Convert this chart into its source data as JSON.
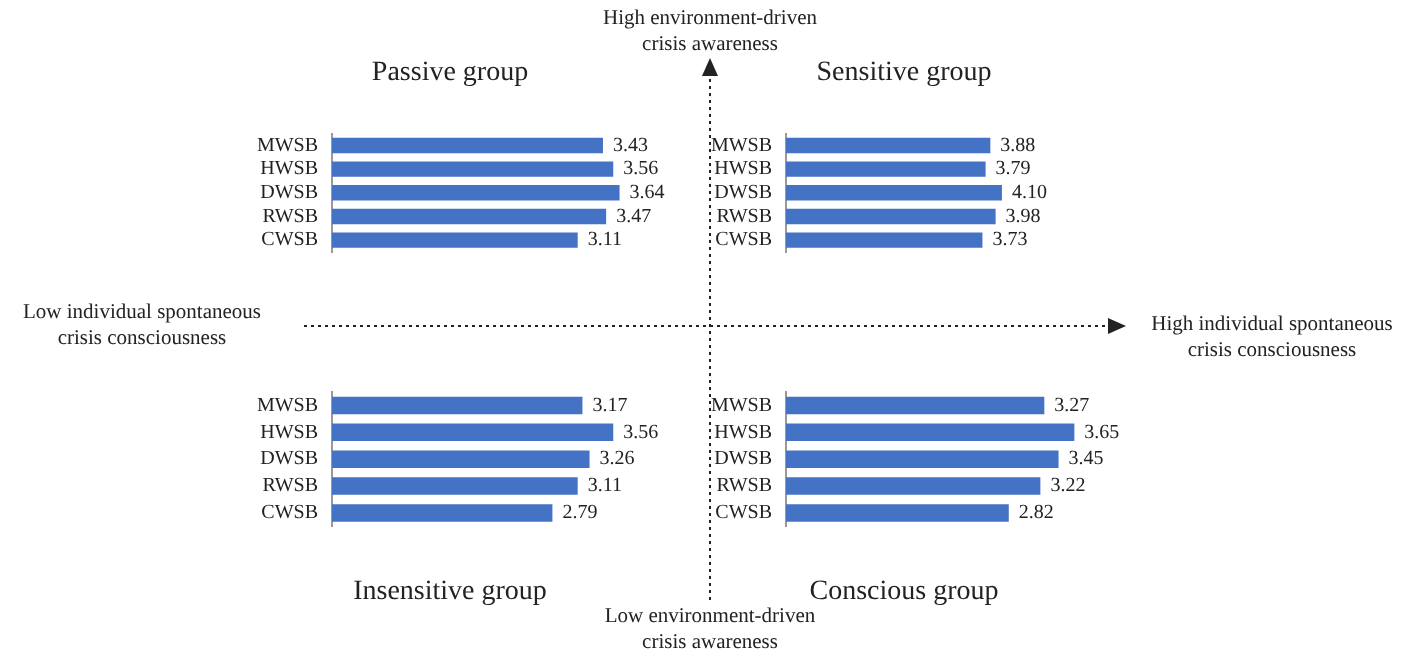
{
  "chart_data": [
    {
      "type": "bar",
      "orientation": "horizontal",
      "title": "Passive group",
      "categories": [
        "MWSB",
        "HWSB",
        "DWSB",
        "RWSB",
        "CWSB"
      ],
      "values": [
        3.43,
        3.56,
        3.64,
        3.47,
        3.11
      ],
      "value_labels": [
        "3.43",
        "3.56",
        "3.64",
        "3.47",
        "3.11"
      ],
      "color": "#4472c4",
      "tick_labels": "y"
    },
    {
      "type": "bar",
      "orientation": "horizontal",
      "title": "Sensitive group",
      "categories": [
        "MWSB",
        "HWSB",
        "DWSB",
        "RWSB",
        "CWSB"
      ],
      "values": [
        3.88,
        3.79,
        4.1,
        3.98,
        3.73
      ],
      "value_labels": [
        "3.88",
        "3.79",
        "4.10",
        "3.98",
        "3.73"
      ],
      "color": "#4472c4",
      "tick_labels": "y"
    },
    {
      "type": "bar",
      "orientation": "horizontal",
      "title": "Insensitive group",
      "categories": [
        "MWSB",
        "HWSB",
        "DWSB",
        "RWSB",
        "CWSB"
      ],
      "values": [
        3.17,
        3.56,
        3.26,
        3.11,
        2.79
      ],
      "value_labels": [
        "3.17",
        "3.56",
        "3.26",
        "3.11",
        "2.79"
      ],
      "color": "#4472c4",
      "tick_labels": "y"
    },
    {
      "type": "bar",
      "orientation": "horizontal",
      "title": "Conscious group",
      "categories": [
        "MWSB",
        "HWSB",
        "DWSB",
        "RWSB",
        "CWSB"
      ],
      "values": [
        3.27,
        3.65,
        3.45,
        3.22,
        2.82
      ],
      "value_labels": [
        "3.27",
        "3.65",
        "3.45",
        "3.22",
        "2.82"
      ],
      "color": "#4472c4",
      "tick_labels": "y"
    },
    {
      "type": "other",
      "annotations": [
        "High environment-driven crisis awareness",
        "Low environment-driven crisis awareness",
        "Low individual spontaneous crisis consciousness",
        "High individual spontaneous crisis consciousness"
      ]
    }
  ]
}
